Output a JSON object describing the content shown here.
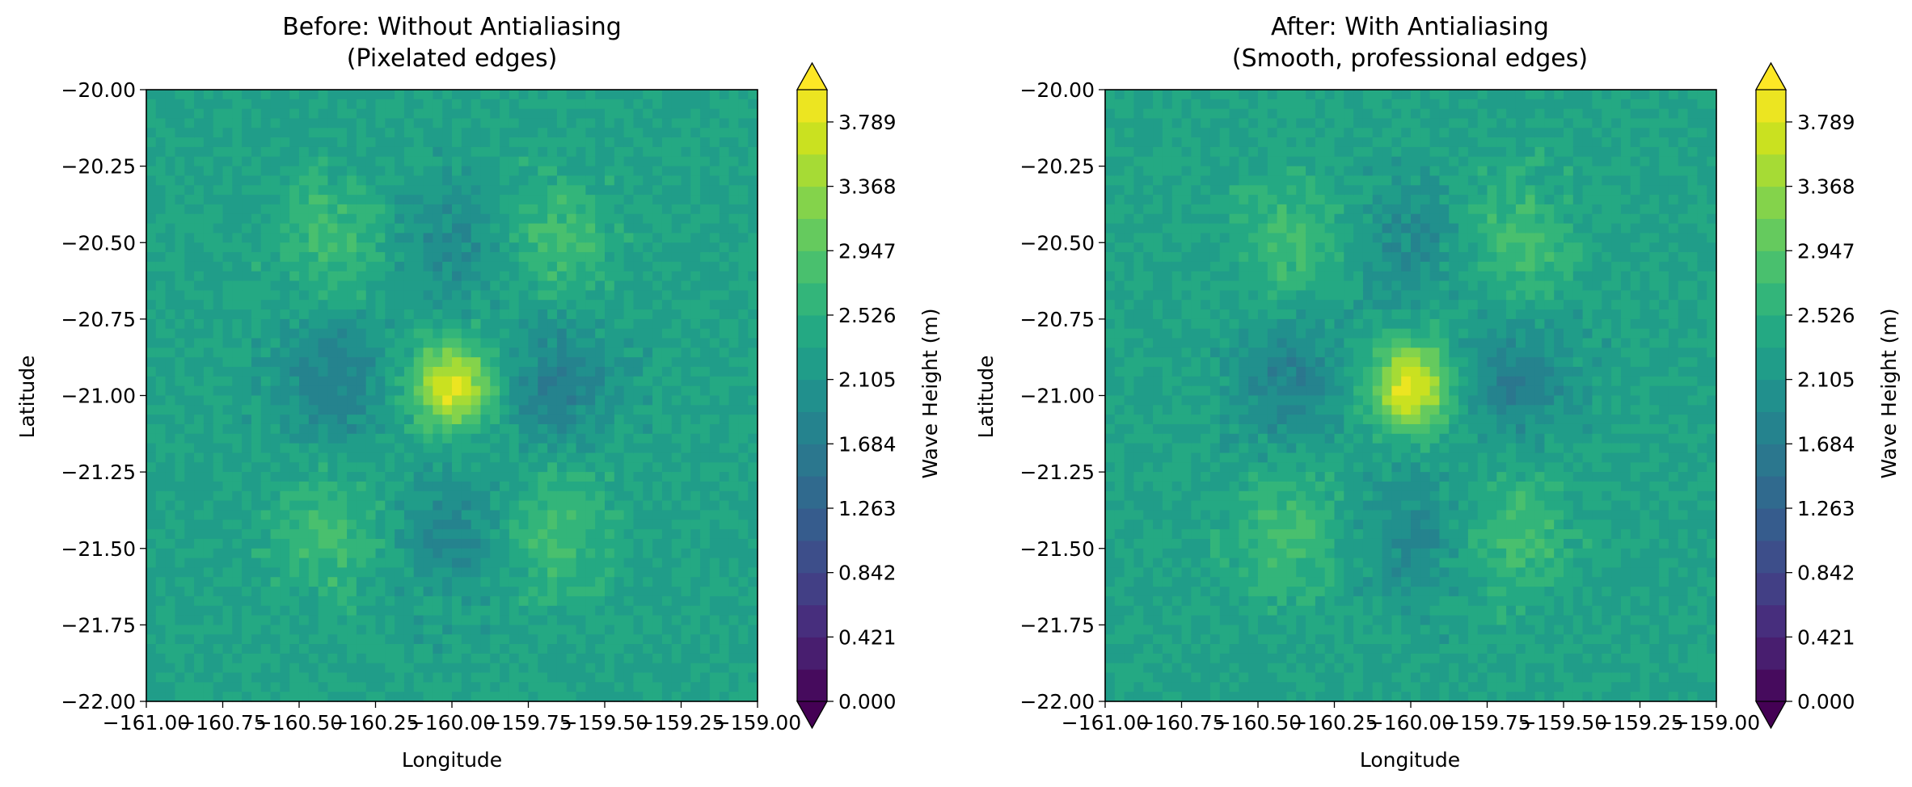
{
  "chart_data": [
    {
      "type": "heatmap",
      "subtype": "filled-contour",
      "title": "Before: Without Antialiasing",
      "subtitle": "(Pixelated edges)",
      "xlabel": "Longitude",
      "ylabel": "Latitude",
      "xlim": [
        -161.0,
        -159.0
      ],
      "ylim": [
        -22.0,
        -20.0
      ],
      "x_ticks": [
        -161.0,
        -160.75,
        -160.5,
        -160.25,
        -160.0,
        -159.75,
        -159.5,
        -159.25,
        -159.0
      ],
      "x_tick_labels": [
        "−161.00",
        "−160.75",
        "−160.50",
        "−160.25",
        "−160.00",
        "−159.75",
        "−159.50",
        "−159.25",
        "−159.00"
      ],
      "y_ticks": [
        -20.0,
        -20.25,
        -20.5,
        -20.75,
        -21.0,
        -21.25,
        -21.5,
        -21.75,
        -22.0
      ],
      "y_tick_labels": [
        "−20.00",
        "−20.25",
        "−20.50",
        "−20.75",
        "−21.00",
        "−21.25",
        "−21.50",
        "−21.75",
        "−22.00"
      ],
      "colormap": "viridis",
      "antialiased": false,
      "field": {
        "baseline": 2.3,
        "peak": {
          "x": -160.0,
          "y": -20.97,
          "value": 3.9
        },
        "lows": [
          {
            "x": -160.4,
            "y": -20.95,
            "value": 1.75
          },
          {
            "x": -159.65,
            "y": -20.95,
            "value": 1.75
          },
          {
            "x": -160.0,
            "y": -21.45,
            "value": 1.9
          },
          {
            "x": -160.0,
            "y": -20.5,
            "value": 1.95
          }
        ],
        "highs": [
          {
            "x": -160.4,
            "y": -20.5,
            "value": 2.75
          },
          {
            "x": -159.65,
            "y": -20.5,
            "value": 2.75
          },
          {
            "x": -160.4,
            "y": -21.45,
            "value": 2.75
          },
          {
            "x": -159.65,
            "y": -21.45,
            "value": 2.75
          }
        ]
      },
      "colorbar": {
        "label": "Wave Height (m)",
        "min": 0.0,
        "max": 4.0,
        "levels": 19,
        "extend": "both",
        "tick_values": [
          0.0,
          0.421,
          0.842,
          1.263,
          1.684,
          2.105,
          2.526,
          2.947,
          3.368,
          3.789
        ],
        "tick_labels": [
          "0.000",
          "0.421",
          "0.842",
          "1.263",
          "1.684",
          "2.105",
          "2.526",
          "2.947",
          "3.368",
          "3.789"
        ]
      }
    },
    {
      "type": "heatmap",
      "subtype": "filled-contour",
      "title": "After: With Antialiasing",
      "subtitle": "(Smooth, professional edges)",
      "xlabel": "Longitude",
      "ylabel": "Latitude",
      "xlim": [
        -161.0,
        -159.0
      ],
      "ylim": [
        -22.0,
        -20.0
      ],
      "x_ticks": [
        -161.0,
        -160.75,
        -160.5,
        -160.25,
        -160.0,
        -159.75,
        -159.5,
        -159.25,
        -159.0
      ],
      "x_tick_labels": [
        "−161.00",
        "−160.75",
        "−160.50",
        "−160.25",
        "−160.00",
        "−159.75",
        "−159.50",
        "−159.25",
        "−159.00"
      ],
      "y_ticks": [
        -20.0,
        -20.25,
        -20.5,
        -20.75,
        -21.0,
        -21.25,
        -21.5,
        -21.75,
        -22.0
      ],
      "y_tick_labels": [
        "−20.00",
        "−20.25",
        "−20.50",
        "−20.75",
        "−21.00",
        "−21.25",
        "−21.50",
        "−21.75",
        "−22.00"
      ],
      "colormap": "viridis",
      "antialiased": true,
      "field": {
        "baseline": 2.3,
        "peak": {
          "x": -160.0,
          "y": -20.97,
          "value": 3.9
        },
        "lows": [
          {
            "x": -160.4,
            "y": -20.95,
            "value": 1.75
          },
          {
            "x": -159.65,
            "y": -20.95,
            "value": 1.75
          },
          {
            "x": -160.0,
            "y": -21.45,
            "value": 1.9
          },
          {
            "x": -160.0,
            "y": -20.5,
            "value": 1.95
          }
        ],
        "highs": [
          {
            "x": -160.4,
            "y": -20.5,
            "value": 2.75
          },
          {
            "x": -159.65,
            "y": -20.5,
            "value": 2.75
          },
          {
            "x": -160.4,
            "y": -21.45,
            "value": 2.75
          },
          {
            "x": -159.65,
            "y": -21.45,
            "value": 2.75
          }
        ]
      },
      "colorbar": {
        "label": "Wave Height (m)",
        "min": 0.0,
        "max": 4.0,
        "levels": 19,
        "extend": "both",
        "tick_values": [
          0.0,
          0.421,
          0.842,
          1.263,
          1.684,
          2.105,
          2.526,
          2.947,
          3.368,
          3.789
        ],
        "tick_labels": [
          "0.000",
          "0.421",
          "0.842",
          "1.263",
          "1.684",
          "2.105",
          "2.526",
          "2.947",
          "3.368",
          "3.789"
        ]
      }
    }
  ]
}
